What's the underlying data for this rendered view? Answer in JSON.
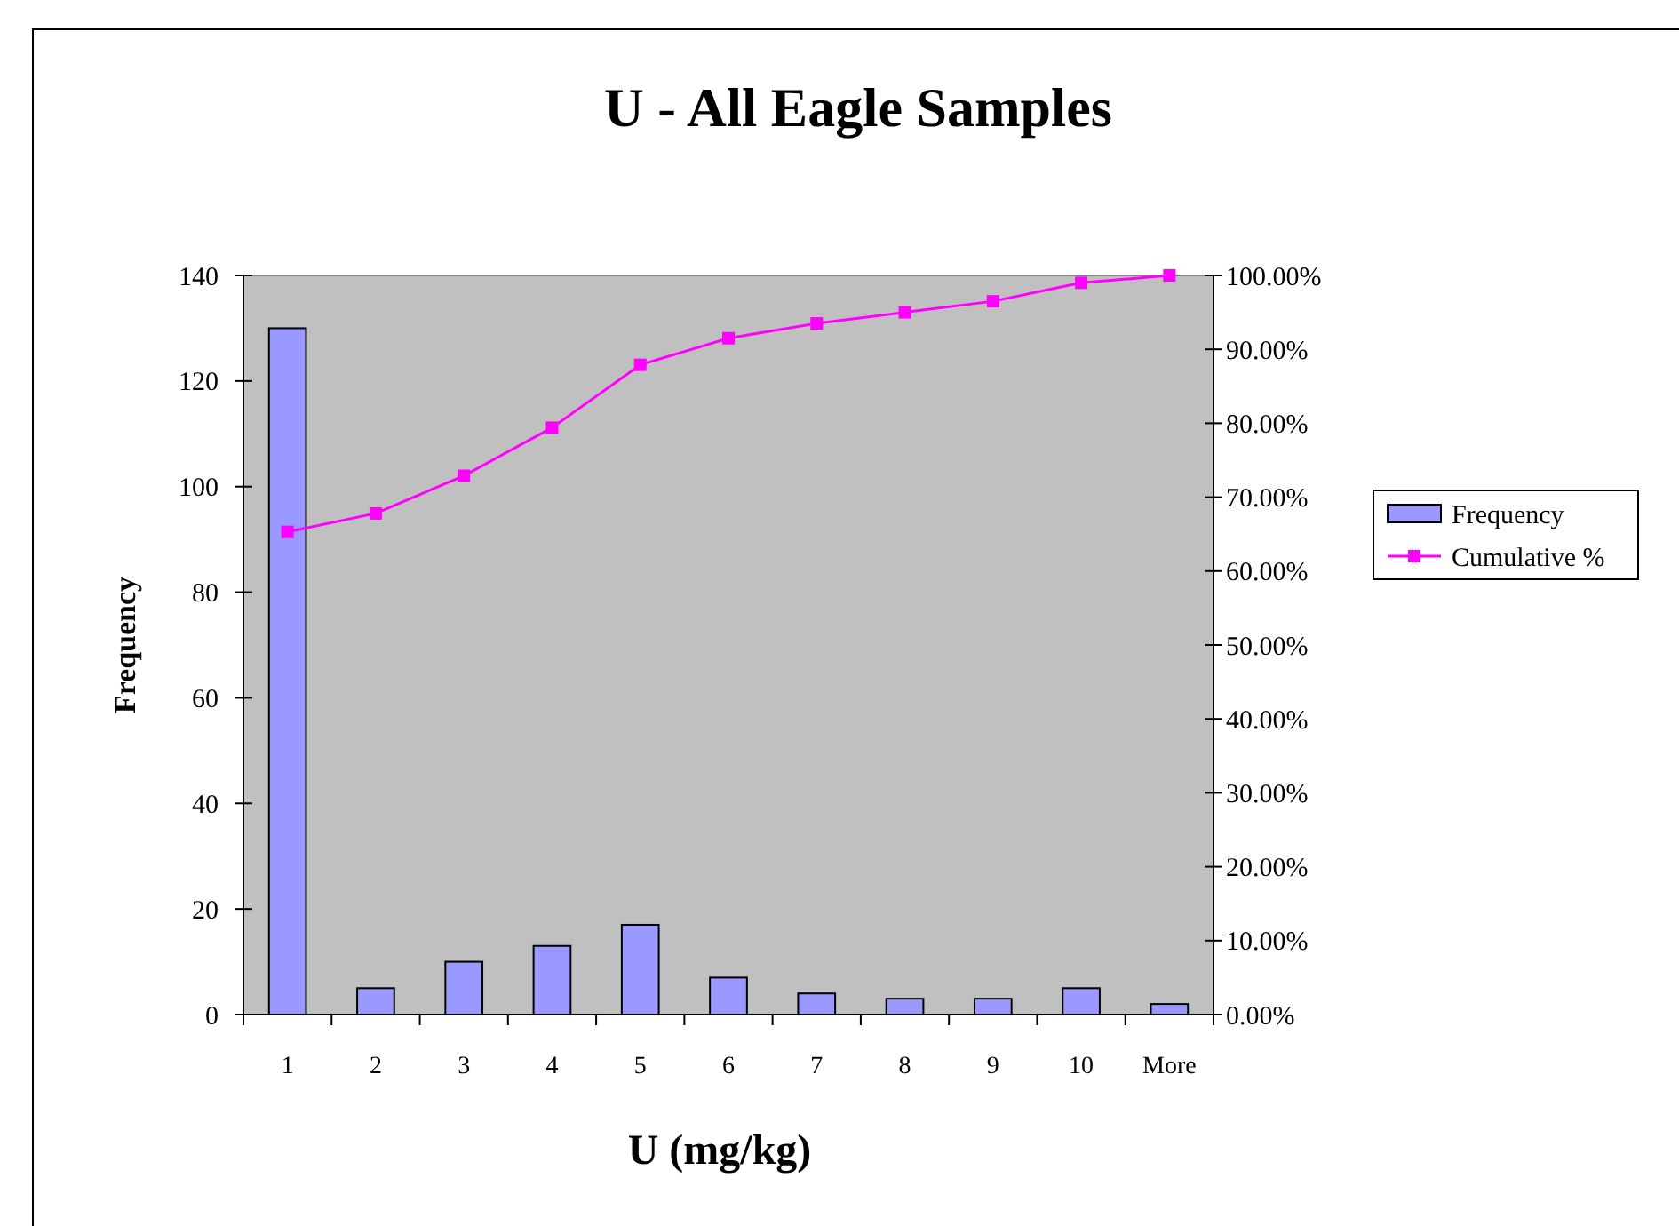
{
  "chart_data": {
    "type": "bar",
    "title": "U - All Eagle Samples",
    "xlabel": "U (mg/kg)",
    "ylabel": "Frequency",
    "categories": [
      "1",
      "2",
      "3",
      "4",
      "5",
      "6",
      "7",
      "8",
      "9",
      "10",
      "More"
    ],
    "series": [
      {
        "name": "Frequency",
        "color": "#9999ff",
        "values": [
          130,
          5,
          10,
          13,
          17,
          7,
          4,
          3,
          3,
          5,
          2
        ]
      },
      {
        "name": "Cumulative %",
        "type": "line",
        "axis": "y2",
        "color": "#ff00ff",
        "marker": "square",
        "values": [
          65.3,
          67.8,
          72.9,
          79.4,
          87.9,
          91.5,
          93.5,
          95,
          96.5,
          99,
          100
        ]
      }
    ],
    "ylim": [
      0,
      140
    ],
    "yticks": [
      0,
      20,
      40,
      60,
      80,
      100,
      120,
      140
    ],
    "y2lim": [
      0,
      100
    ],
    "y2ticks": [
      {
        "value": 0,
        "label": "0.00%"
      },
      {
        "value": 10,
        "label": "10.00%"
      },
      {
        "value": 20,
        "label": "20.00%"
      },
      {
        "value": 30,
        "label": "30.00%"
      },
      {
        "value": 40,
        "label": "40.00%"
      },
      {
        "value": 50,
        "label": "50.00%"
      },
      {
        "value": 60,
        "label": "60.00%"
      },
      {
        "value": 70,
        "label": "70.00%"
      },
      {
        "value": 80,
        "label": "80.00%"
      },
      {
        "value": 90,
        "label": "90.00%"
      },
      {
        "value": 100,
        "label": "100.00%"
      }
    ],
    "legend": "right",
    "grid": false
  }
}
